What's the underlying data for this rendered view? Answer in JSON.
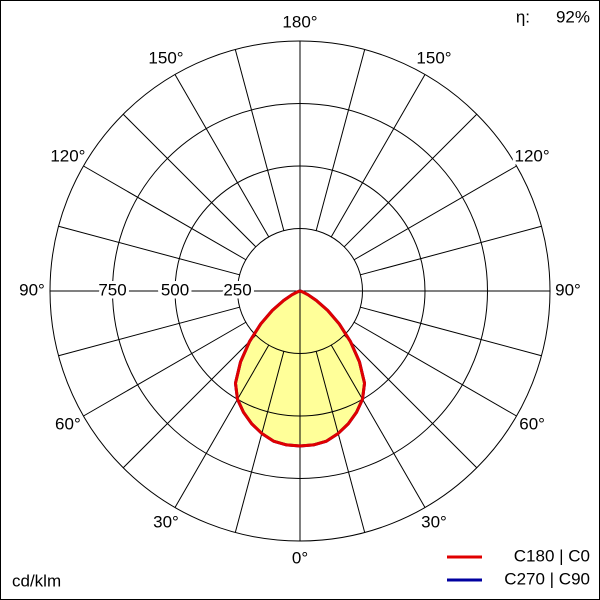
{
  "chart_data": {
    "type": "polar",
    "radial_unit": "cd/klm",
    "efficiency_label": "η:",
    "efficiency": {
      "value": 92,
      "label": "92%"
    },
    "rlim": [
      0,
      1000
    ],
    "rticks": [
      250,
      500,
      750
    ],
    "angular_grid_step": 15,
    "thetaticks": [
      {
        "value": 0,
        "label": "0°"
      },
      {
        "value": 30,
        "label": "30°"
      },
      {
        "value": 60,
        "label": "60°"
      },
      {
        "value": 90,
        "label": "90°"
      },
      {
        "value": 120,
        "label": "120°"
      },
      {
        "value": 150,
        "label": "150°"
      },
      {
        "value": 180,
        "label": "180°"
      }
    ],
    "theta": [
      0,
      5,
      10,
      15,
      20,
      25,
      30,
      35,
      40,
      45,
      50,
      55,
      60,
      65,
      70,
      75,
      80,
      85,
      90
    ],
    "fill_color": "#ffff99",
    "series": [
      {
        "name": "C180 | C0",
        "color": "#e00000",
        "values": [
          620,
          618,
          610,
          590,
          565,
          535,
          500,
          450,
          370,
          285,
          205,
          135,
          75,
          35,
          12,
          3,
          0,
          0,
          0
        ]
      },
      {
        "name": "C270 | C90",
        "color": "#0000a0",
        "values": [
          620,
          618,
          610,
          590,
          565,
          535,
          500,
          450,
          370,
          285,
          205,
          135,
          75,
          35,
          12,
          3,
          0,
          0,
          0
        ]
      }
    ]
  }
}
